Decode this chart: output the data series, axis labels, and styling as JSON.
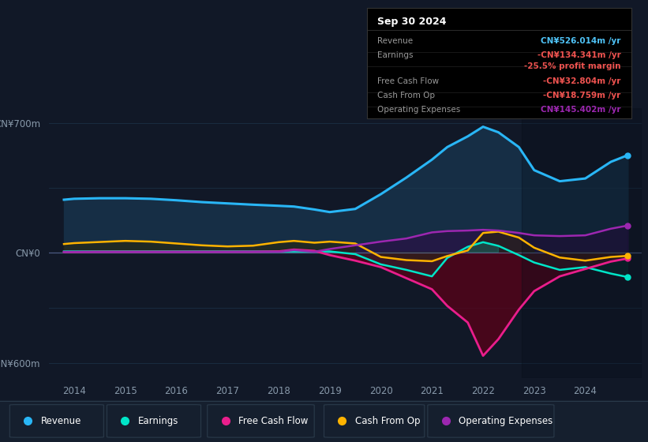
{
  "background_color": "#111827",
  "plot_bg_color": "#111827",
  "ylim": [
    -680,
    780
  ],
  "ytick_labels": [
    "CN¥700m",
    "CN¥0",
    "-CN¥600m"
  ],
  "ytick_values": [
    700,
    0,
    -600
  ],
  "xlim_start": 2013.5,
  "xlim_end": 2025.1,
  "xlabel_years": [
    2014,
    2015,
    2016,
    2017,
    2018,
    2019,
    2020,
    2021,
    2022,
    2023,
    2024
  ],
  "text_color": "#8899aa",
  "zero_line_color": "#6677aa",
  "grid_color": "#1e3a50",
  "revenue_color": "#29b6f6",
  "revenue_fill": "#1a3a5c",
  "earnings_color": "#00e5c8",
  "fcf_color": "#e91e8c",
  "fcf_fill": "#6b0020",
  "cashop_color": "#ffb300",
  "cashop_fill_pos": "#3a2e00",
  "cashop_fill_neg": "#3a1500",
  "opex_color": "#9c27b0",
  "opex_fill": "#3a0d5a",
  "dark_overlay_color": "#0a1520",
  "legend_bg": "#151f2e",
  "legend_border": "#2a3a4a",
  "infobox_bg": "#000000",
  "infobox_border": "#333333",
  "title_box_date": "Sep 30 2024",
  "info_rows": [
    {
      "label": "Revenue",
      "value": "CN¥526.014m /yr",
      "value_color": "#4fc3f7"
    },
    {
      "label": "Earnings",
      "value": "-CN¥134.341m /yr",
      "value_color": "#ef5350"
    },
    {
      "label": "",
      "value": "-25.5% profit margin",
      "value_color": "#ef5350"
    },
    {
      "label": "Free Cash Flow",
      "value": "-CN¥32.804m /yr",
      "value_color": "#ef5350"
    },
    {
      "label": "Cash From Op",
      "value": "-CN¥18.759m /yr",
      "value_color": "#ef5350"
    },
    {
      "label": "Operating Expenses",
      "value": "CN¥145.402m /yr",
      "value_color": "#9c27b0"
    }
  ],
  "legend_items": [
    {
      "label": "Revenue",
      "color": "#29b6f6"
    },
    {
      "label": "Earnings",
      "color": "#00e5c8"
    },
    {
      "label": "Free Cash Flow",
      "color": "#e91e8c"
    },
    {
      "label": "Cash From Op",
      "color": "#ffb300"
    },
    {
      "label": "Operating Expenses",
      "color": "#9c27b0"
    }
  ],
  "t_years": [
    2013.8,
    2014.0,
    2014.5,
    2015.0,
    2015.5,
    2016.0,
    2016.5,
    2017.0,
    2017.5,
    2018.0,
    2018.3,
    2018.7,
    2019.0,
    2019.5,
    2020.0,
    2020.5,
    2021.0,
    2021.3,
    2021.7,
    2022.0,
    2022.3,
    2022.7,
    2023.0,
    2023.5,
    2024.0,
    2024.5,
    2024.83
  ],
  "revenue": [
    285,
    290,
    293,
    293,
    290,
    282,
    272,
    265,
    258,
    252,
    248,
    232,
    218,
    235,
    315,
    405,
    502,
    570,
    628,
    680,
    650,
    570,
    445,
    385,
    400,
    490,
    526
  ],
  "earnings": [
    5,
    5,
    5,
    5,
    5,
    5,
    5,
    5,
    5,
    5,
    5,
    5,
    5,
    -10,
    -65,
    -95,
    -130,
    -30,
    30,
    55,
    35,
    -15,
    -55,
    -95,
    -80,
    -115,
    -134
  ],
  "fcf": [
    2,
    2,
    3,
    3,
    3,
    3,
    3,
    3,
    3,
    5,
    15,
    8,
    -15,
    -45,
    -80,
    -140,
    -200,
    -290,
    -380,
    -560,
    -470,
    -310,
    -210,
    -130,
    -90,
    -50,
    -33
  ],
  "cashop": [
    45,
    50,
    56,
    62,
    58,
    48,
    38,
    32,
    36,
    55,
    62,
    52,
    58,
    48,
    -25,
    -42,
    -48,
    -20,
    10,
    105,
    112,
    80,
    25,
    -28,
    -45,
    -25,
    -19
  ],
  "opex": [
    2,
    2,
    2,
    2,
    2,
    2,
    2,
    2,
    3,
    3,
    12,
    3,
    18,
    38,
    58,
    75,
    108,
    115,
    118,
    122,
    118,
    105,
    92,
    88,
    92,
    128,
    145
  ]
}
